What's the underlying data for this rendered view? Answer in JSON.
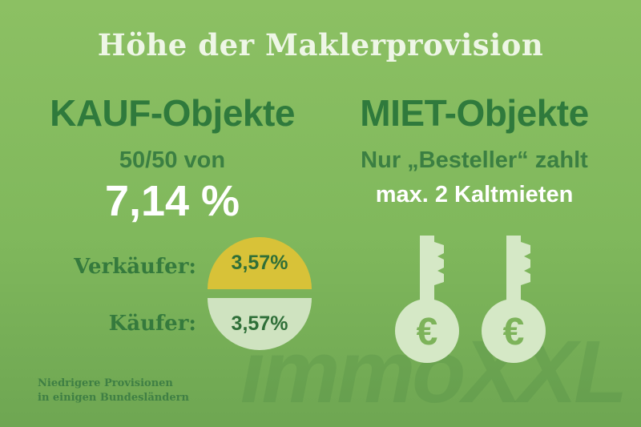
{
  "title": "Höhe der Maklerprovision",
  "kauf": {
    "heading": "KAUF-Objekte",
    "split_text": "50/50 von",
    "total": "7,14 %",
    "rows": [
      {
        "label": "Verkäufer:",
        "value": "3,57%"
      },
      {
        "label": "Käufer:",
        "value": "3,57%"
      }
    ]
  },
  "miet": {
    "heading": "MIET-Objekte",
    "line1": "Nur „Besteller“ zahlt",
    "line2": "max. 2 Kaltmieten",
    "icons": [
      "euro-key-icon",
      "euro-key-icon"
    ],
    "euro_symbol": "€"
  },
  "footnote": {
    "line1": "Niedrigere Provisionen",
    "line2": "in einigen Bundesländern"
  },
  "watermark": "immoXXL",
  "colors": {
    "background": "#84bb5f",
    "heading_green": "#2f7a3c",
    "seller_half": "#d8c238",
    "buyer_half": "#cfe3c0",
    "key_fill": "#d5e8c6"
  }
}
